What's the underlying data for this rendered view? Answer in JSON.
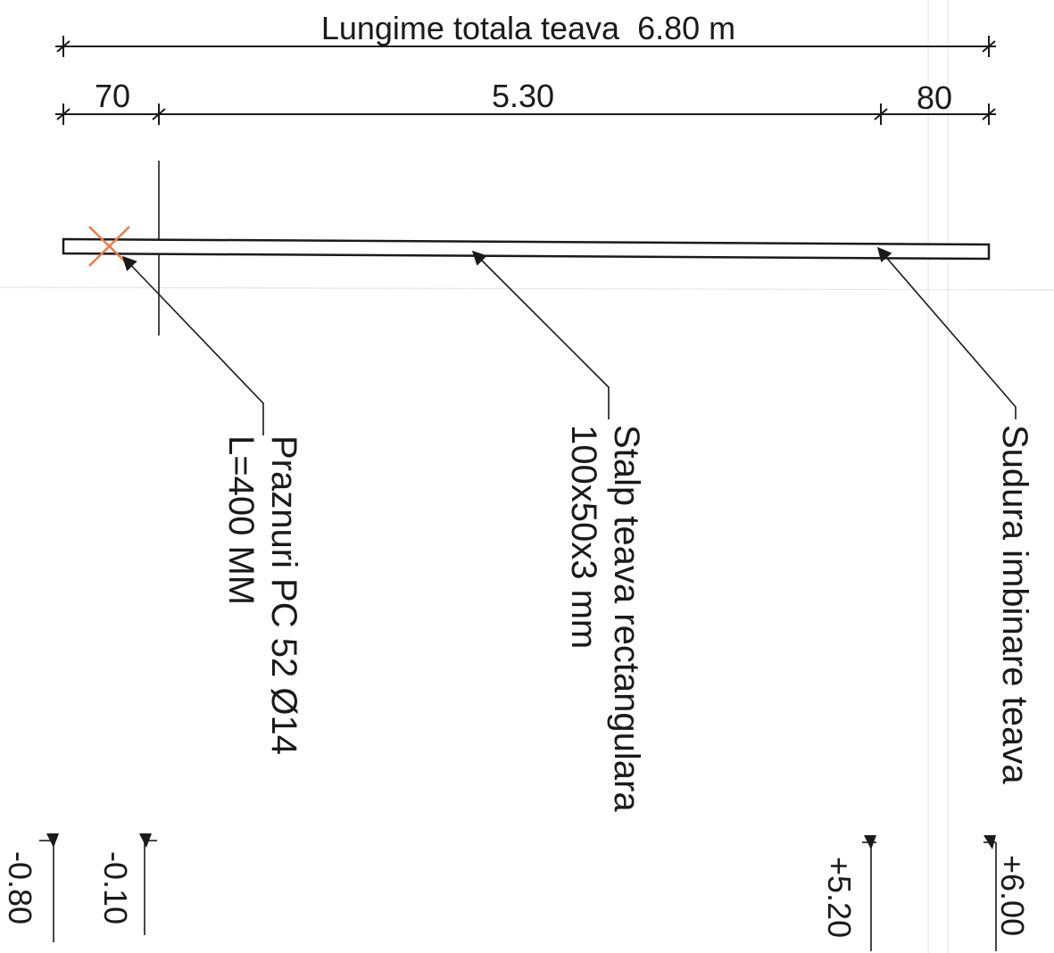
{
  "dimensions": {
    "total": "Lungime totala teava  6.80 m",
    "left_segment": "70",
    "middle_segment": "5.30",
    "right_segment": "80"
  },
  "labels": {
    "anchors_line1": "Praznuri PC 52 Ø14",
    "anchors_line2": "L=400 MM",
    "pipe_line1": "Stalp teava rectangulara",
    "pipe_line2": "100x50x3 mm",
    "weld": "Sudura imbinare teava"
  },
  "levels": {
    "l1": "-0.80",
    "l2": "-0.10",
    "l3": "+5.20",
    "l4": "+6.00"
  },
  "colors": {
    "line": "#1a1a1a",
    "anchor_cross": "#f07a4a",
    "background": "#ffffff"
  }
}
